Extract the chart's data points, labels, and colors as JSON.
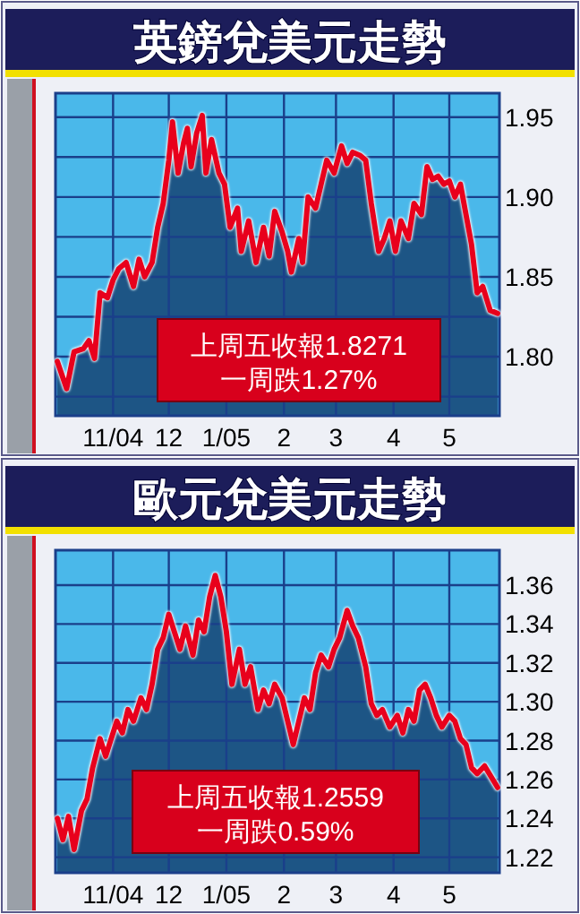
{
  "chart_data": [
    {
      "type": "area",
      "title": "英鎊兌美元走勢",
      "annotations": [
        "上周五收報1.8271",
        "一周跌1.27%"
      ],
      "grid": true,
      "xlim": [
        "2004-10-01",
        "2005-05-28"
      ],
      "xticks": [
        {
          "value": "2004-11-01",
          "label": "11/04"
        },
        {
          "value": "2004-12-01",
          "label": "12"
        },
        {
          "value": "2005-01-01",
          "label": "1/05"
        },
        {
          "value": "2005-02-01",
          "label": "2"
        },
        {
          "value": "2005-03-01",
          "label": "3"
        },
        {
          "value": "2005-04-01",
          "label": "4"
        },
        {
          "value": "2005-05-01",
          "label": "5"
        }
      ],
      "ylim": [
        1.763,
        1.965
      ],
      "yticks": [
        {
          "value": 1.775,
          "label": null
        },
        {
          "value": 1.8,
          "label": "1.80"
        },
        {
          "value": 1.825,
          "label": null
        },
        1.85,
        {
          "value": 1.875,
          "label": null
        },
        {
          "value": 1.9,
          "label": "1.90"
        },
        {
          "value": 1.925,
          "label": null
        },
        1.95
      ],
      "x": [
        "2004-10-02",
        "2004-10-07",
        "2004-10-11",
        "2004-10-16",
        "2004-10-19",
        "2004-10-22",
        "2004-10-25",
        "2004-10-29",
        "2004-11-01",
        "2004-11-04",
        "2004-11-08",
        "2004-11-12",
        "2004-11-15",
        "2004-11-18",
        "2004-11-22",
        "2004-11-25",
        "2004-11-28",
        "2004-12-01",
        "2004-12-03",
        "2004-12-06",
        "2004-12-09",
        "2004-12-11",
        "2004-12-13",
        "2004-12-16",
        "2004-12-19",
        "2004-12-21",
        "2004-12-24",
        "2004-12-28",
        "2004-12-31",
        "2005-01-03",
        "2005-01-07",
        "2005-01-09",
        "2005-01-13",
        "2005-01-17",
        "2005-01-21",
        "2005-01-24",
        "2005-01-27",
        "2005-01-31",
        "2005-02-03",
        "2005-02-05",
        "2005-02-09",
        "2005-02-11",
        "2005-02-14",
        "2005-02-18",
        "2005-02-21",
        "2005-02-24",
        "2005-02-28",
        "2005-03-04",
        "2005-03-07",
        "2005-03-10",
        "2005-03-14",
        "2005-03-17",
        "2005-03-20",
        "2005-03-24",
        "2005-03-27",
        "2005-03-30",
        "2005-04-02",
        "2005-04-05",
        "2005-04-09",
        "2005-04-12",
        "2005-04-16",
        "2005-04-19",
        "2005-04-22",
        "2005-04-25",
        "2005-04-28",
        "2005-05-01",
        "2005-05-04",
        "2005-05-07",
        "2005-05-10",
        "2005-05-13",
        "2005-05-16",
        "2005-05-19",
        "2005-05-23",
        "2005-05-27"
      ],
      "series": [
        {
          "color": "#1d5585",
          "values": [
            1.797,
            1.78,
            1.803,
            1.805,
            1.81,
            1.799,
            1.84,
            1.837,
            1.848,
            1.855,
            1.859,
            1.844,
            1.861,
            1.85,
            1.859,
            1.881,
            1.896,
            1.923,
            1.947,
            1.915,
            1.934,
            1.943,
            1.919,
            1.94,
            1.951,
            1.915,
            1.936,
            1.915,
            1.908,
            1.881,
            1.893,
            1.866,
            1.885,
            1.859,
            1.881,
            1.863,
            1.891,
            1.878,
            1.866,
            1.853,
            1.874,
            1.859,
            1.9,
            1.893,
            1.908,
            1.923,
            1.915,
            1.932,
            1.921,
            1.928,
            1.926,
            1.923,
            1.896,
            1.866,
            1.874,
            1.885,
            1.866,
            1.885,
            1.874,
            1.896,
            1.889,
            1.919,
            1.911,
            1.913,
            1.908,
            1.91,
            1.9,
            1.908,
            1.889,
            1.87,
            1.84,
            1.844,
            1.829,
            1.8271
          ]
        },
        {
          "type": "line",
          "color": "#e8001c",
          "values": [
            1.797,
            1.78,
            1.803,
            1.805,
            1.81,
            1.799,
            1.84,
            1.837,
            1.848,
            1.855,
            1.859,
            1.844,
            1.861,
            1.85,
            1.859,
            1.881,
            1.896,
            1.923,
            1.947,
            1.915,
            1.934,
            1.943,
            1.919,
            1.94,
            1.951,
            1.915,
            1.936,
            1.915,
            1.908,
            1.881,
            1.893,
            1.866,
            1.885,
            1.859,
            1.881,
            1.863,
            1.891,
            1.878,
            1.866,
            1.853,
            1.874,
            1.859,
            1.9,
            1.893,
            1.908,
            1.923,
            1.915,
            1.932,
            1.921,
            1.928,
            1.926,
            1.923,
            1.896,
            1.866,
            1.874,
            1.885,
            1.866,
            1.885,
            1.874,
            1.896,
            1.889,
            1.919,
            1.911,
            1.913,
            1.908,
            1.91,
            1.9,
            1.908,
            1.889,
            1.87,
            1.84,
            1.844,
            1.829,
            1.8271
          ]
        }
      ]
    },
    {
      "type": "area",
      "title": "歐元兌美元走勢",
      "annotations": [
        "上周五收報1.2559",
        "一周跌0.59%"
      ],
      "grid": true,
      "xlim": [
        "2004-10-01",
        "2005-05-28"
      ],
      "xticks": [
        {
          "value": "2004-11-01",
          "label": "11/04"
        },
        {
          "value": "2004-12-01",
          "label": "12"
        },
        {
          "value": "2005-01-01",
          "label": "1/05"
        },
        {
          "value": "2005-02-01",
          "label": "2"
        },
        {
          "value": "2005-03-01",
          "label": "3"
        },
        {
          "value": "2005-04-01",
          "label": "4"
        },
        {
          "value": "2005-05-01",
          "label": "5"
        }
      ],
      "ylim": [
        1.212,
        1.378
      ],
      "yticks": [
        1.22,
        1.24,
        1.26,
        1.28,
        {
          "value": 1.3,
          "label": "1.30"
        },
        1.32,
        1.34,
        1.36
      ],
      "x": [
        "2004-10-02",
        "2004-10-05",
        "2004-10-08",
        "2004-10-11",
        "2004-10-15",
        "2004-10-18",
        "2004-10-21",
        "2004-10-25",
        "2004-10-28",
        "2004-10-31",
        "2004-11-03",
        "2004-11-06",
        "2004-11-09",
        "2004-11-12",
        "2004-11-16",
        "2004-11-19",
        "2004-11-22",
        "2004-11-25",
        "2004-11-28",
        "2004-12-01",
        "2004-12-04",
        "2004-12-07",
        "2004-12-10",
        "2004-12-14",
        "2004-12-17",
        "2004-12-20",
        "2004-12-23",
        "2004-12-26",
        "2004-12-29",
        "2005-01-01",
        "2005-01-04",
        "2005-01-08",
        "2005-01-11",
        "2005-01-14",
        "2005-01-18",
        "2005-01-21",
        "2005-01-24",
        "2005-01-27",
        "2005-01-31",
        "2005-02-03",
        "2005-02-06",
        "2005-02-09",
        "2005-02-12",
        "2005-02-15",
        "2005-02-18",
        "2005-02-21",
        "2005-02-25",
        "2005-02-28",
        "2005-03-03",
        "2005-03-07",
        "2005-03-10",
        "2005-03-13",
        "2005-03-17",
        "2005-03-20",
        "2005-03-23",
        "2005-03-26",
        "2005-03-30",
        "2005-04-03",
        "2005-04-06",
        "2005-04-09",
        "2005-04-12",
        "2005-04-15",
        "2005-04-18",
        "2005-04-21",
        "2005-04-24",
        "2005-04-27",
        "2005-05-01",
        "2005-05-04",
        "2005-05-07",
        "2005-05-10",
        "2005-05-13",
        "2005-05-16",
        "2005-05-20",
        "2005-05-27"
      ],
      "series": [
        {
          "color": "#1d5585",
          "values": [
            1.24,
            1.229,
            1.241,
            1.224,
            1.244,
            1.25,
            1.266,
            1.281,
            1.272,
            1.281,
            1.29,
            1.284,
            1.296,
            1.29,
            1.302,
            1.296,
            1.309,
            1.327,
            1.333,
            1.345,
            1.336,
            1.327,
            1.339,
            1.324,
            1.342,
            1.336,
            1.354,
            1.365,
            1.354,
            1.336,
            1.309,
            1.327,
            1.309,
            1.318,
            1.296,
            1.306,
            1.299,
            1.309,
            1.302,
            1.29,
            1.278,
            1.29,
            1.302,
            1.296,
            1.315,
            1.324,
            1.318,
            1.327,
            1.333,
            1.347,
            1.339,
            1.333,
            1.318,
            1.299,
            1.293,
            1.296,
            1.287,
            1.293,
            1.284,
            1.296,
            1.29,
            1.306,
            1.309,
            1.302,
            1.293,
            1.287,
            1.293,
            1.29,
            1.281,
            1.278,
            1.266,
            1.263,
            1.267,
            1.2559
          ]
        },
        {
          "type": "line",
          "color": "#e8001c",
          "values": [
            1.24,
            1.229,
            1.241,
            1.224,
            1.244,
            1.25,
            1.266,
            1.281,
            1.272,
            1.281,
            1.29,
            1.284,
            1.296,
            1.29,
            1.302,
            1.296,
            1.309,
            1.327,
            1.333,
            1.345,
            1.336,
            1.327,
            1.339,
            1.324,
            1.342,
            1.336,
            1.354,
            1.365,
            1.354,
            1.336,
            1.309,
            1.327,
            1.309,
            1.318,
            1.296,
            1.306,
            1.299,
            1.309,
            1.302,
            1.29,
            1.278,
            1.29,
            1.302,
            1.296,
            1.315,
            1.324,
            1.318,
            1.327,
            1.333,
            1.347,
            1.339,
            1.333,
            1.318,
            1.299,
            1.293,
            1.296,
            1.287,
            1.293,
            1.284,
            1.296,
            1.29,
            1.306,
            1.309,
            1.302,
            1.293,
            1.287,
            1.293,
            1.29,
            1.281,
            1.278,
            1.266,
            1.263,
            1.267,
            1.2559
          ]
        }
      ]
    }
  ]
}
